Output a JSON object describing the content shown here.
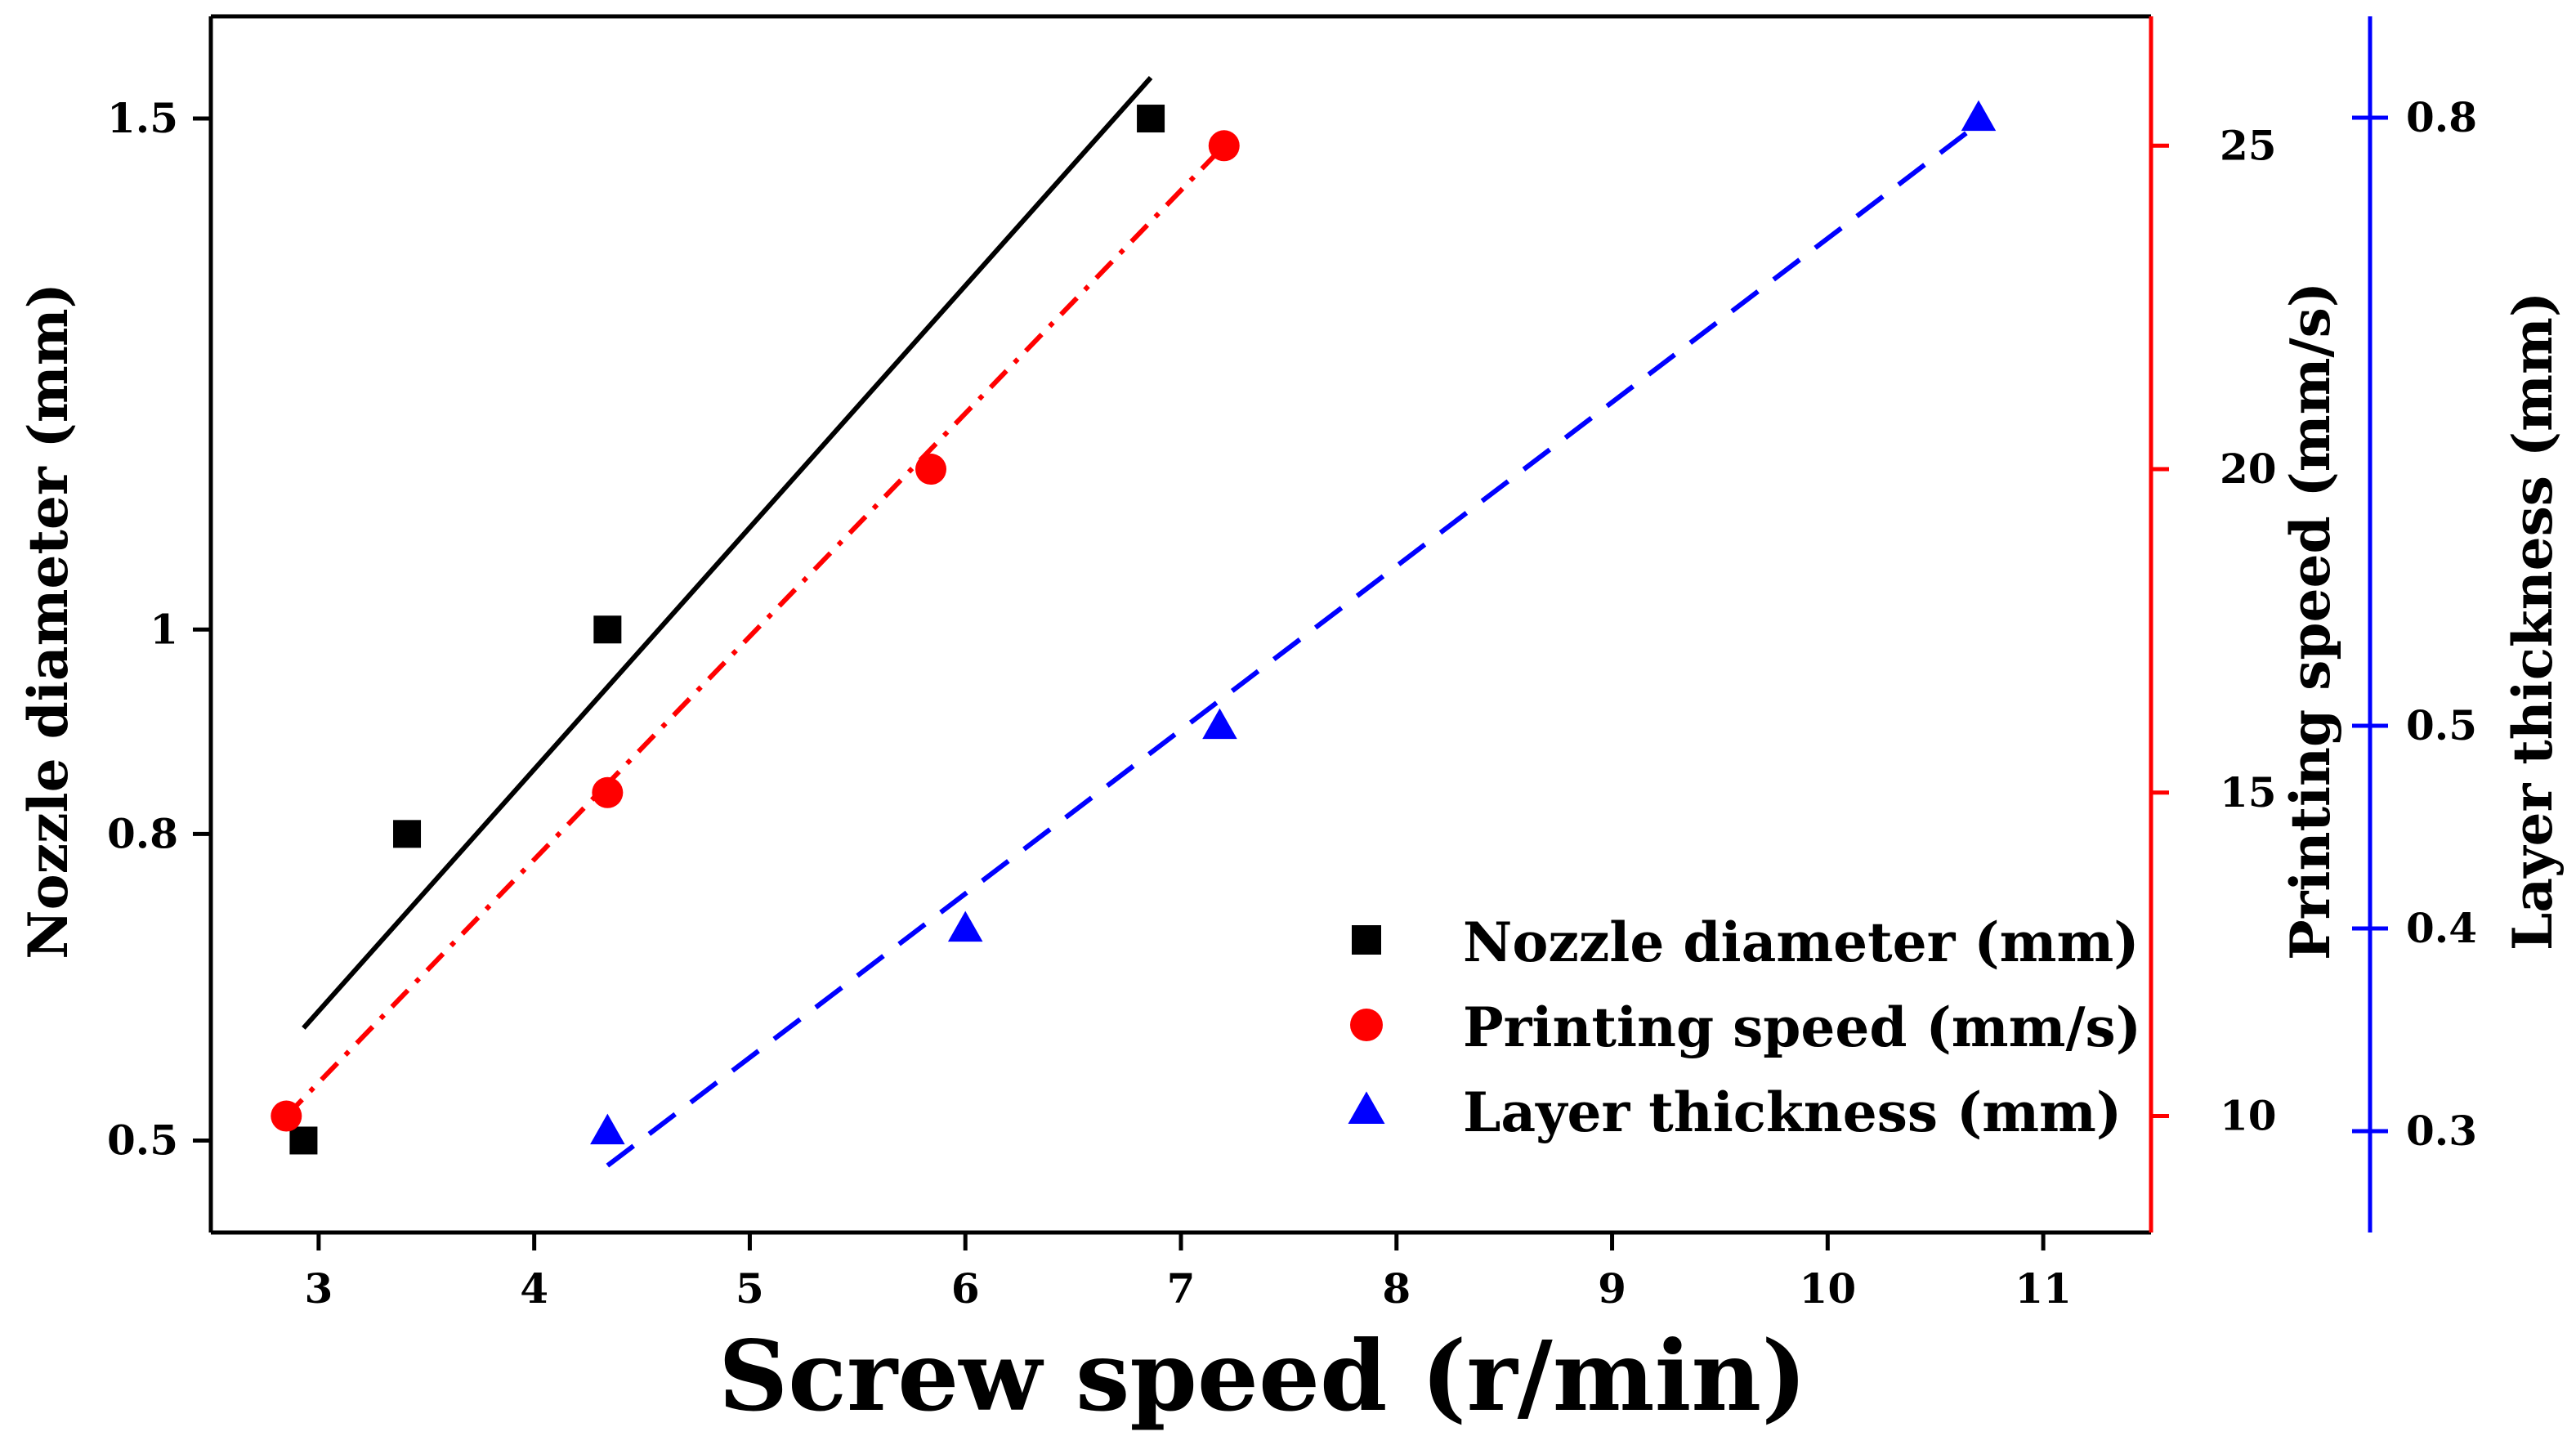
{
  "chart_data": {
    "type": "scatter",
    "xlabel": "Screw speed (r/min)",
    "xlim": [
      2.5,
      11.5
    ],
    "xticks": [
      3,
      4,
      5,
      6,
      7,
      8,
      9,
      10,
      11
    ],
    "xtick_labels": [
      "3",
      "4",
      "5",
      "6",
      "7",
      "8",
      "9",
      "10",
      "11"
    ],
    "axes": [
      {
        "id": "left",
        "label": "Nozzle diameter (mm)",
        "color": "#000000",
        "scale": "linear",
        "ylim": [
          0.41,
          1.6
        ],
        "ticks": [
          0.5,
          0.8,
          1,
          1.5
        ],
        "tick_labels": [
          "0.5",
          "0.8",
          "1",
          "1.5"
        ]
      },
      {
        "id": "right1",
        "label": "Printing speed (mm/s)",
        "color": "#ff0000",
        "scale": "linear",
        "ylim": [
          8.2,
          27
        ],
        "ticks": [
          10,
          15,
          20,
          25
        ],
        "tick_labels": [
          "10",
          "15",
          "20",
          "25"
        ]
      },
      {
        "id": "right2",
        "label": "Layer thickness (mm)",
        "color": "#0000ff",
        "scale": "linear",
        "ylim": [
          0.25,
          0.85
        ],
        "ticks": [
          0.3,
          0.4,
          0.5,
          0.8
        ],
        "tick_labels": [
          "0.3",
          "0.4",
          "0.5",
          "0.8"
        ]
      }
    ],
    "series": [
      {
        "name": "Nozzle diameter (mm)",
        "axis": "left",
        "marker": "square",
        "color": "#000000",
        "x": [
          2.93,
          3.41,
          4.34,
          6.86
        ],
        "y": [
          0.5,
          0.8,
          1.0,
          1.5
        ],
        "fit": {
          "style": "solid",
          "x": [
            2.93,
            6.86
          ],
          "y": [
            0.61,
            1.54
          ]
        }
      },
      {
        "name": "Printing speed (mm/s)",
        "axis": "right1",
        "marker": "circle",
        "color": "#ff0000",
        "x": [
          2.85,
          4.34,
          5.84,
          7.2
        ],
        "y": [
          10,
          15,
          20,
          25
        ],
        "fit": {
          "style": "dashdot",
          "x": [
            2.85,
            7.2
          ],
          "y": [
            10,
            25
          ]
        }
      },
      {
        "name": "Layer thickness (mm)",
        "axis": "right2",
        "marker": "triangle",
        "color": "#0000ff",
        "x": [
          4.34,
          6.0,
          7.18,
          10.7
        ],
        "y": [
          0.3,
          0.4,
          0.5,
          0.8
        ],
        "fit": {
          "style": "dashed",
          "x": [
            4.34,
            10.7
          ],
          "y": [
            0.283,
            0.797
          ]
        }
      }
    ],
    "legend": {
      "position": "bottom-right",
      "entries": [
        "Nozzle diameter (mm)",
        "Printing speed (mm/s)",
        "Layer thickness (mm)"
      ]
    }
  }
}
